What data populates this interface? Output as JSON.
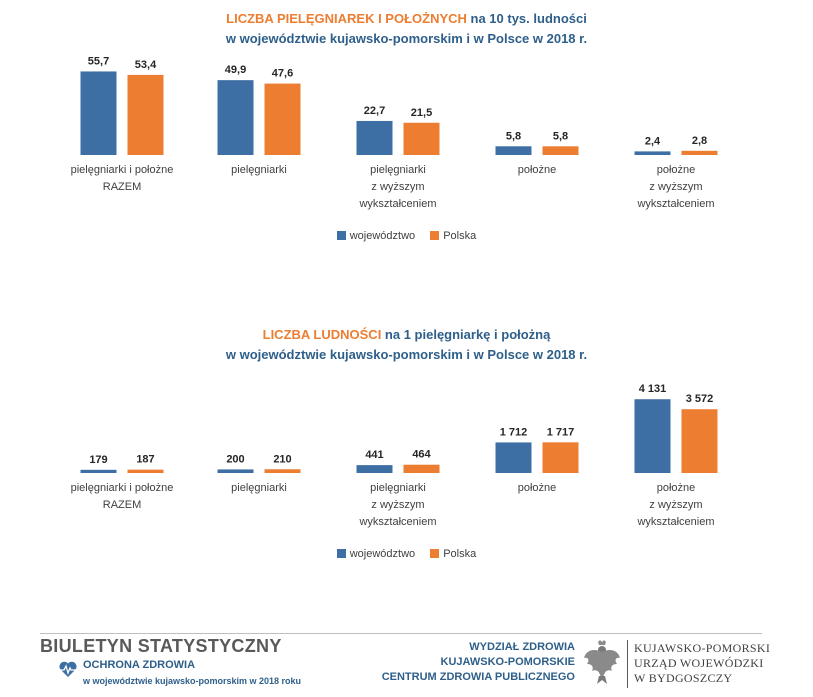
{
  "colors": {
    "wojewodztwo": "#3d6fa4",
    "polska": "#ed7d31",
    "title_blue": "#2e5f8a",
    "title_orange": "#ed7d31"
  },
  "chart1": {
    "title_accent": "LICZBA PIELĘGNIAREK I POŁOŻNYCH",
    "title_rest": " na 10 tys. ludności",
    "title_line2": "w województwie kujawsko-pomorskim i w Polsce w 2018 r."
  },
  "chart2": {
    "title_accent": "LICZBA LUDNOŚCI",
    "title_rest": " na 1 pielęgniarkę i położną",
    "title_line2": "w województwie kujawsko-pomorskim i w Polsce w 2018 r."
  },
  "legend": {
    "wojewodztwo": "województwo",
    "polska": "Polska"
  },
  "chart_data": [
    {
      "type": "bar",
      "title": "LICZBA PIELĘGNIAREK I POŁOŻNYCH na 10 tys. ludności w województwie kujawsko-pomorskim i w Polsce w 2018 r.",
      "categories": [
        [
          "pielęgniarki i położne",
          "RAZEM"
        ],
        [
          "pielęgniarki"
        ],
        [
          "pielęgniarki",
          "z wyższym",
          "wykształceniem"
        ],
        [
          "położne"
        ],
        [
          "położne",
          "z wyższym",
          "wykształceniem"
        ]
      ],
      "series": [
        {
          "name": "województwo",
          "values": [
            55.7,
            49.9,
            22.7,
            5.8,
            2.4
          ],
          "labels": [
            "55,7",
            "49,9",
            "22,7",
            "5,8",
            "2,4"
          ]
        },
        {
          "name": "Polska",
          "values": [
            53.4,
            47.6,
            21.5,
            5.8,
            2.8
          ],
          "labels": [
            "53,4",
            "47,6",
            "21,5",
            "5,8",
            "2,8"
          ]
        }
      ],
      "ylim": [
        0,
        60
      ],
      "xlabel": "",
      "ylabel": ""
    },
    {
      "type": "bar",
      "title": "LICZBA LUDNOŚCI na 1 pielęgniarkę i położną w województwie kujawsko-pomorskim i w Polsce w 2018 r.",
      "categories": [
        [
          "pielęgniarki i położne",
          "RAZEM"
        ],
        [
          "pielęgniarki"
        ],
        [
          "pielęgniarki",
          "z wyższym",
          "wykształceniem"
        ],
        [
          "położne"
        ],
        [
          "położne",
          "z wyższym",
          "wykształceniem"
        ]
      ],
      "series": [
        {
          "name": "województwo",
          "values": [
            179,
            200,
            441,
            1712,
            4131
          ],
          "labels": [
            "179",
            "200",
            "441",
            "1 712",
            "4 131"
          ]
        },
        {
          "name": "Polska",
          "values": [
            187,
            210,
            464,
            1717,
            3572
          ],
          "labels": [
            "187",
            "210",
            "464",
            "1 717",
            "3 572"
          ]
        }
      ],
      "ylim": [
        0,
        4200
      ],
      "xlabel": "",
      "ylabel": ""
    }
  ],
  "footer": {
    "bulletin_title": "BIULETYN STATYSTYCZNY",
    "subtitle": "OCHRONA ZDROWIA",
    "subtitle2": "w województwie kujawsko-pomorskim w 2018 roku",
    "dept_line1": "WYDZIAŁ ZDROWIA",
    "dept_line2": "KUJAWSKO-POMORSKIE",
    "dept_line3": "CENTRUM ZDROWIA PUBLICZNEGO",
    "urzad_line1": "KUJAWSKO-POMORSKI",
    "urzad_line2": "URZĄD WOJEWÓDZKI",
    "urzad_line3": "W BYDGOSZCZY"
  }
}
